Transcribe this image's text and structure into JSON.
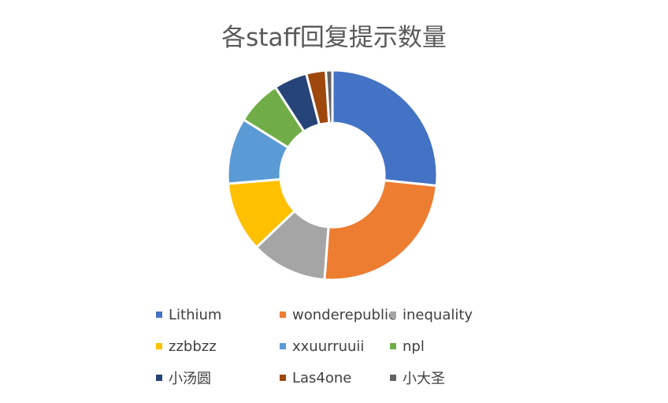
{
  "chart_data": {
    "type": "donut",
    "title": "各staff回复提示数量",
    "legend_position": "bottom",
    "categories": [
      "Lithium",
      "wonderepublic",
      "inequality",
      "zzbbzz",
      "xxuurruuii",
      "npl",
      "小汤圆",
      "Las4one",
      "小大圣"
    ],
    "values": [
      26.4,
      24.4,
      11.6,
      10.7,
      10.1,
      6.9,
      5.1,
      3.0,
      1.0
    ],
    "colors": [
      "#4472C4",
      "#ED7D31",
      "#A5A5A5",
      "#FFC000",
      "#5B9BD5",
      "#70AD47",
      "#264478",
      "#9E480E",
      "#636363"
    ]
  }
}
